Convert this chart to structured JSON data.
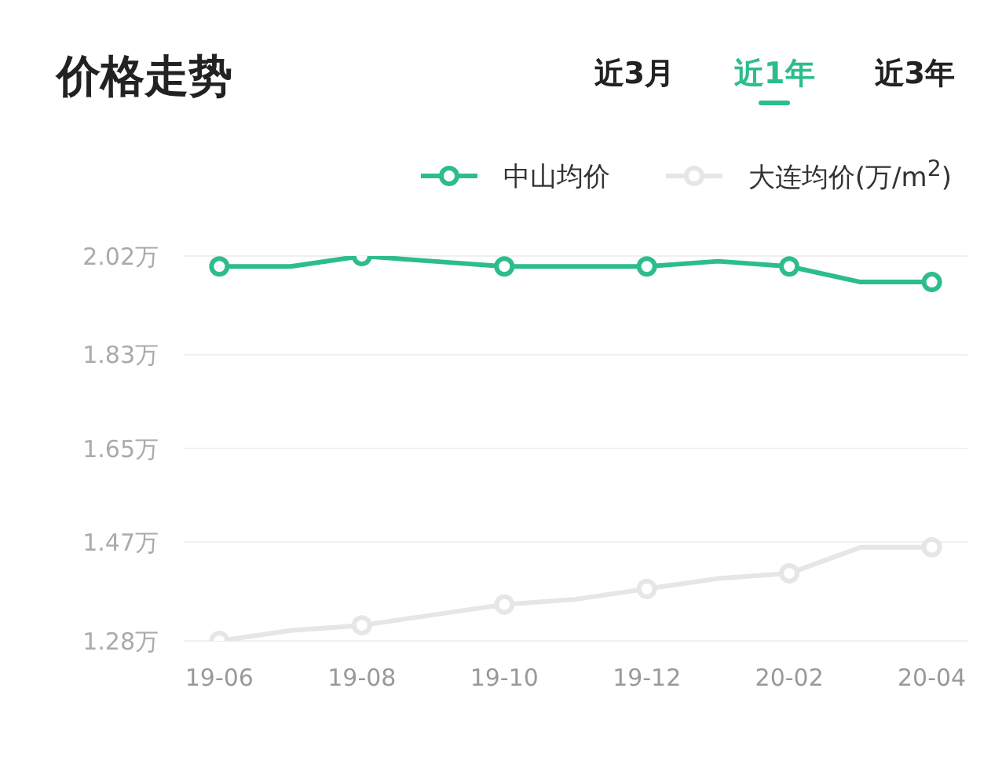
{
  "chart_data": {
    "type": "line",
    "title": "价格走势",
    "annotations": [
      "近3月",
      "近1年",
      "近3年"
    ],
    "categories": [
      "19-06",
      null,
      "19-08",
      null,
      "19-10",
      null,
      "19-12",
      null,
      "20-02",
      null,
      "20-04"
    ],
    "series": [
      {
        "name": "中山均价",
        "color": "#2dbd8c",
        "values": [
          2.0,
          2.0,
          2.02,
          2.01,
          2.0,
          2.0,
          2.0,
          2.01,
          2.0,
          1.97,
          1.97
        ]
      },
      {
        "name": "大连均价(万/m$^{2}$)",
        "color": "#e4e6e8",
        "values": [
          1.28,
          1.3,
          1.31,
          1.33,
          1.35,
          1.36,
          1.38,
          1.4,
          1.41,
          1.46,
          1.46
        ]
      }
    ],
    "ylim": [
      1.28,
      2.02
    ],
    "yticks": [
      {
        "value": 1.28,
        "label": "1.28万"
      },
      {
        "value": 1.47,
        "label": "1.47万"
      },
      {
        "value": 1.65,
        "label": "1.65万"
      },
      {
        "value": 1.83,
        "label": "1.83万"
      },
      {
        "value": 2.02,
        "label": "2.02万"
      }
    ],
    "grid": "y",
    "legend": "top right",
    "marker": "circle",
    "line_style": "solid"
  }
}
